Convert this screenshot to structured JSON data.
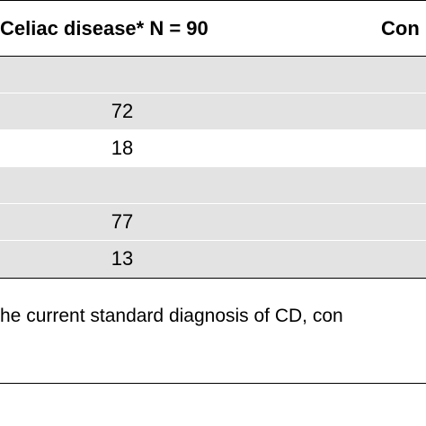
{
  "table": {
    "headers": {
      "celiac": "Celiac disease* N = 90",
      "control": "Con"
    },
    "rows": [
      {
        "value": ""
      },
      {
        "value": "72"
      },
      {
        "value": "18"
      },
      {
        "value": ""
      },
      {
        "value": "77"
      },
      {
        "value": "13"
      }
    ]
  },
  "footnote": "he current standard diagnosis of CD, con"
}
